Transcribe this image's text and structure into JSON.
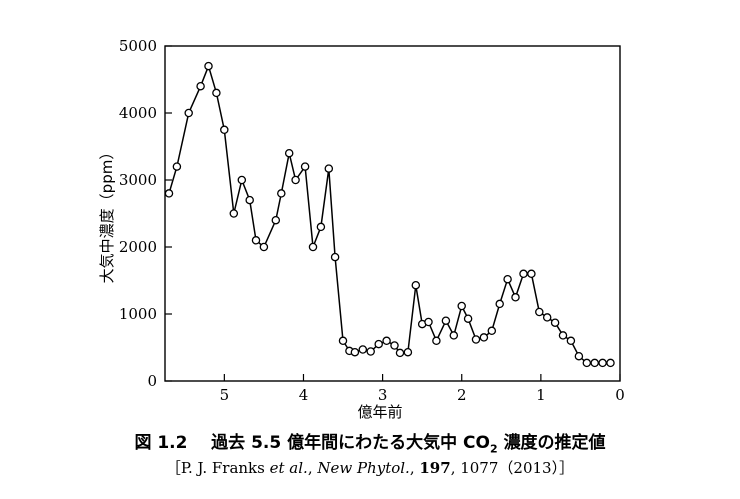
{
  "chart_data": {
    "type": "line",
    "xlabel": "億年前",
    "ylabel": "大気中濃度（ppm）",
    "xlim": [
      5.75,
      0
    ],
    "ylim": [
      0,
      5000
    ],
    "x_ticks": [
      5,
      4,
      3,
      2,
      1,
      0
    ],
    "y_ticks": [
      0,
      1000,
      2000,
      3000,
      4000,
      5000
    ],
    "grid": false,
    "series": [
      {
        "x": [
          5.7,
          5.6,
          5.45,
          5.3,
          5.2,
          5.1,
          5.0,
          4.88,
          4.78,
          4.68,
          4.6,
          4.5,
          4.35,
          4.28,
          4.18,
          4.1,
          3.98,
          3.88,
          3.78,
          3.68,
          3.6,
          3.5,
          3.42,
          3.35,
          3.25,
          3.15,
          3.05,
          2.95,
          2.85,
          2.78,
          2.68,
          2.58,
          2.5,
          2.42,
          2.32,
          2.2,
          2.1,
          2.0,
          1.92,
          1.82,
          1.72,
          1.62,
          1.52,
          1.42,
          1.32,
          1.22,
          1.12,
          1.02,
          0.92,
          0.82,
          0.72,
          0.62,
          0.52,
          0.42,
          0.32,
          0.22,
          0.12
        ],
        "y": [
          2800,
          3200,
          4000,
          4400,
          4700,
          4300,
          3750,
          2500,
          3000,
          2700,
          2100,
          2000,
          2400,
          2800,
          3400,
          3000,
          3200,
          2000,
          2300,
          3170,
          1850,
          600,
          450,
          430,
          470,
          440,
          550,
          600,
          530,
          420,
          430,
          1430,
          850,
          880,
          600,
          900,
          680,
          1120,
          930,
          620,
          650,
          750,
          1150,
          1520,
          1250,
          1600,
          1600,
          1030,
          950,
          870,
          680,
          600,
          370,
          270,
          270,
          270,
          270
        ]
      }
    ]
  },
  "caption": {
    "label": "図 1.2",
    "title_pre": "過去 5.5 億年間にわたる大気中 CO",
    "title_sub": "2",
    "title_post": "濃度の推定値"
  },
  "source": {
    "open": "［P. J. Franks ",
    "etal": "et al.",
    "sep1": ", ",
    "journal": "New Phytol.",
    "sep2": ", ",
    "volume": "197",
    "rest": ", 1077（2013）］"
  }
}
